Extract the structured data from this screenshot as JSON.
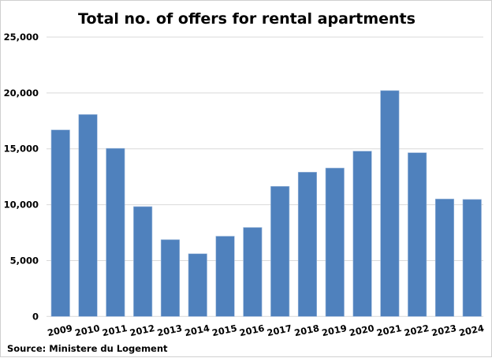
{
  "chart_data": {
    "type": "bar",
    "title": "Total no. of offers for rental apartments",
    "source": "Source: Ministere du Logement",
    "categories": [
      "2009",
      "2010",
      "2011",
      "2012",
      "2013",
      "2014",
      "2015",
      "2016",
      "2017",
      "2018",
      "2019",
      "2020",
      "2021",
      "2022",
      "2023",
      "2024"
    ],
    "values": [
      16690,
      18070,
      15040,
      9830,
      6870,
      5610,
      7180,
      7960,
      11640,
      12910,
      13280,
      14790,
      20210,
      14650,
      10510,
      10470
    ],
    "ylim": [
      0,
      25000
    ],
    "yticks": [
      0,
      5000,
      10000,
      15000,
      20000,
      25000
    ],
    "ytick_labels": [
      "0",
      "5,000",
      "10,000",
      "15,000",
      "20,000",
      "25,000"
    ],
    "grid": true,
    "bar_color": "#4f81bd",
    "xlabel": "",
    "ylabel": ""
  }
}
